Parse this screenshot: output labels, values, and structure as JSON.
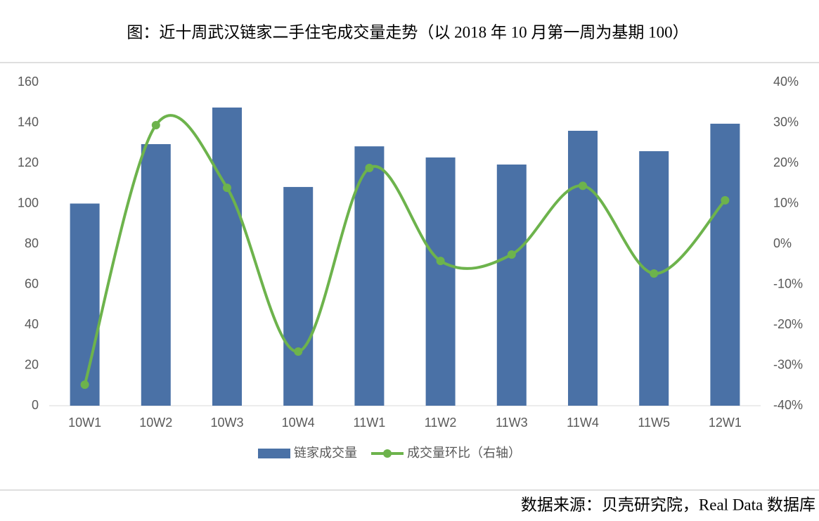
{
  "chart_data": {
    "type": "bar-line",
    "title": "图：近十周武汉链家二手住宅成交量走势（以 2018 年 10 月第一周为基期 100）",
    "source": "数据来源：贝壳研究院，Real Data 数据库",
    "categories": [
      "10W1",
      "10W2",
      "10W3",
      "10W4",
      "11W1",
      "11W2",
      "11W3",
      "11W4",
      "11W5",
      "12W1"
    ],
    "series": [
      {
        "name": "链家成交量",
        "type": "bar",
        "color": "#4a71a6",
        "values": [
          100,
          129.4,
          147.5,
          108.2,
          128.3,
          122.8,
          119.3,
          136,
          125.9,
          139.5
        ]
      },
      {
        "name": "成交量环比（右轴）",
        "type": "line",
        "axis": "y2",
        "color": "#6db34c",
        "values": [
          -34.8,
          29.4,
          13.9,
          -26.6,
          18.8,
          -4.2,
          -2.6,
          14.4,
          -7.3,
          10.8
        ]
      }
    ],
    "ylim": [
      0,
      160
    ],
    "yticks": [
      0,
      20,
      40,
      60,
      80,
      100,
      120,
      140,
      160
    ],
    "y2lim": [
      -40,
      40
    ],
    "y2ticks": [
      {
        "value": -40,
        "label": "-40%"
      },
      {
        "value": -30,
        "label": "-30%"
      },
      {
        "value": -20,
        "label": "-20%"
      },
      {
        "value": -10,
        "label": "-10%"
      },
      {
        "value": 0,
        "label": "0%"
      },
      {
        "value": 10,
        "label": "10%"
      },
      {
        "value": 20,
        "label": "20%"
      },
      {
        "value": 30,
        "label": "30%"
      },
      {
        "value": 40,
        "label": "40%"
      }
    ],
    "legend": "bottom"
  }
}
